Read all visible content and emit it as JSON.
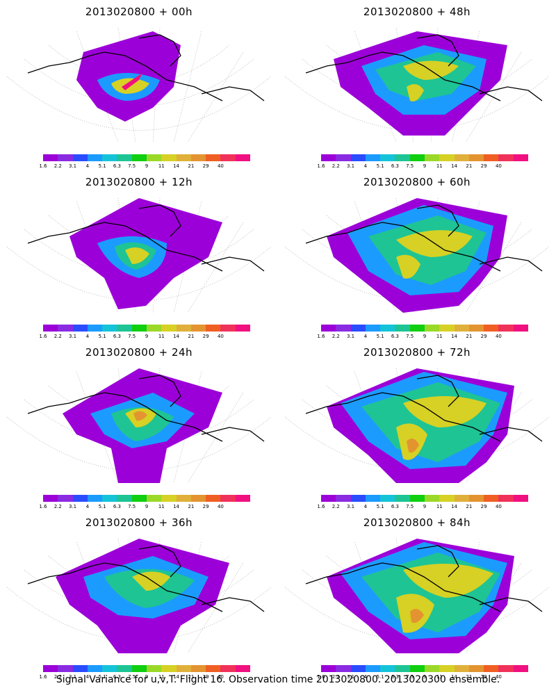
{
  "panels": [
    {
      "title": "2013020800  + 00h"
    },
    {
      "title": "2013020800  + 48h"
    },
    {
      "title": "2013020800  + 12h"
    },
    {
      "title": "2013020800  + 60h"
    },
    {
      "title": "2013020800  + 24h"
    },
    {
      "title": "2013020800  + 72h"
    },
    {
      "title": "2013020800  + 36h"
    },
    {
      "title": "2013020800  + 84h"
    }
  ],
  "colorbar": {
    "colors": [
      "#9c00d8",
      "#8a2be2",
      "#2a4cff",
      "#1c9bff",
      "#15c3d9",
      "#1ec494",
      "#10cf10",
      "#9ad928",
      "#d6d124",
      "#e0b03a",
      "#e39430",
      "#ef5f23",
      "#f0325a",
      "#f01080"
    ],
    "tick_labels": [
      "1.6",
      "2.2",
      "3.1",
      "4",
      "5.1",
      "6.3",
      "7.5",
      "9",
      "11",
      "14",
      "21",
      "29",
      "40"
    ]
  },
  "footer": "Signal Variance for u,v,T. Flight 16. Observation time 2013020800. 2013020300 ensemble."
}
